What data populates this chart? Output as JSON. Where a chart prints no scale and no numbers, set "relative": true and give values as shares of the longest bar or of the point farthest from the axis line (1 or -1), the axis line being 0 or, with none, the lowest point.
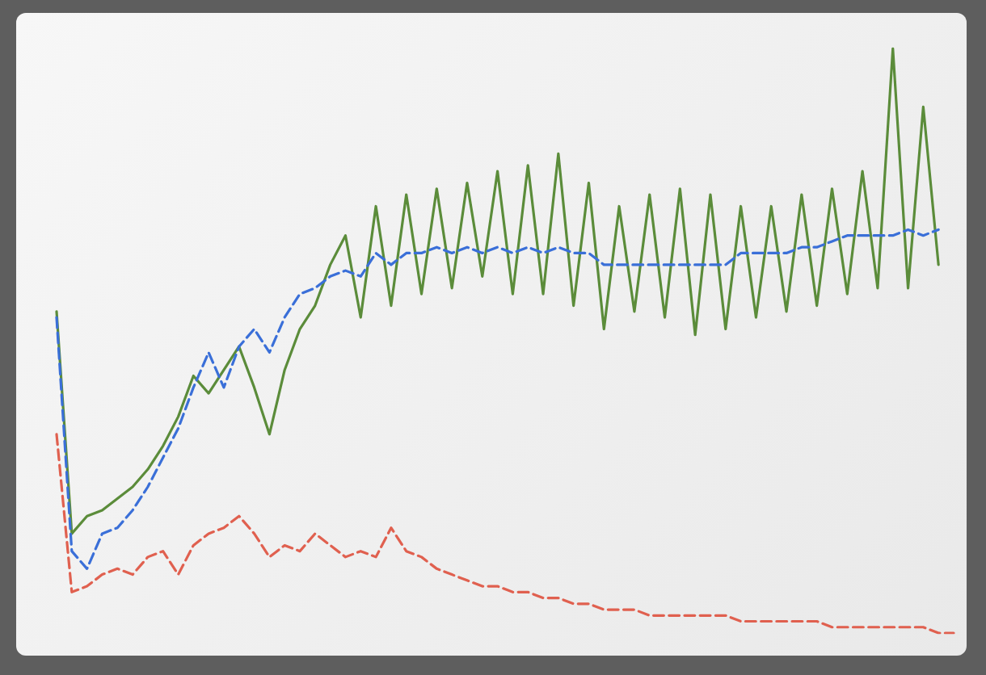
{
  "chart_data": {
    "type": "line",
    "relative": true,
    "marker": "none",
    "categories": [
      null,
      null,
      null,
      null,
      null,
      null,
      null,
      null,
      null,
      null,
      null,
      null,
      null,
      null,
      null,
      null,
      null,
      null,
      null,
      null,
      null,
      null,
      null,
      null,
      null,
      null,
      null,
      null,
      null,
      null,
      null,
      null,
      null,
      null,
      null,
      null,
      null,
      null,
      null,
      null,
      null,
      null,
      null,
      null,
      null,
      null,
      null,
      null,
      null,
      null,
      null,
      null,
      null,
      null,
      null,
      null,
      null,
      null,
      null,
      null
    ],
    "series": [
      {
        "color": "#5b8c3a",
        "line_style": "solid",
        "values": [
          0.55,
          0.17,
          0.2,
          0.21,
          0.23,
          0.25,
          0.28,
          0.32,
          0.37,
          0.44,
          0.41,
          0.45,
          0.49,
          0.42,
          0.34,
          0.45,
          0.52,
          0.56,
          0.63,
          0.68,
          0.54,
          0.73,
          0.56,
          0.75,
          0.58,
          0.76,
          0.59,
          0.77,
          0.61,
          0.79,
          0.58,
          0.8,
          0.58,
          0.82,
          0.56,
          0.77,
          0.52,
          0.73,
          0.55,
          0.75,
          0.54,
          0.76,
          0.51,
          0.75,
          0.52,
          0.73,
          0.54,
          0.73,
          0.55,
          0.75,
          0.56,
          0.76,
          0.58,
          0.79,
          0.59,
          1,
          0.59,
          0.9,
          0.63,
          null
        ]
      },
      {
        "color": "#3a6fd8",
        "line_style": "dashed",
        "values": [
          0.54,
          0.14,
          0.11,
          0.17,
          0.18,
          0.21,
          0.25,
          0.3,
          0.35,
          0.42,
          0.48,
          0.42,
          0.49,
          0.52,
          0.48,
          0.54,
          0.58,
          0.59,
          0.61,
          0.62,
          0.61,
          0.65,
          0.63,
          0.65,
          0.65,
          0.66,
          0.65,
          0.66,
          0.65,
          0.66,
          0.65,
          0.66,
          0.65,
          0.66,
          0.65,
          0.65,
          0.63,
          0.63,
          0.63,
          0.63,
          0.63,
          0.63,
          0.63,
          0.63,
          0.63,
          0.65,
          0.65,
          0.65,
          0.65,
          0.66,
          0.66,
          0.67,
          0.68,
          0.68,
          0.68,
          0.68,
          0.69,
          0.68,
          0.69,
          null
        ]
      },
      {
        "color": "#e0604f",
        "line_style": "dashed",
        "values": [
          0.34,
          0.07,
          0.08,
          0.1,
          0.11,
          0.1,
          0.13,
          0.14,
          0.1,
          0.15,
          0.17,
          0.18,
          0.2,
          0.17,
          0.13,
          0.15,
          0.14,
          0.17,
          0.15,
          0.13,
          0.14,
          0.13,
          0.18,
          0.14,
          0.13,
          0.11,
          0.1,
          0.09,
          0.08,
          0.08,
          0.07,
          0.07,
          0.06,
          0.06,
          0.05,
          0.05,
          0.04,
          0.04,
          0.04,
          0.03,
          0.03,
          0.03,
          0.03,
          0.03,
          0.03,
          0.02,
          0.02,
          0.02,
          0.02,
          0.02,
          0.02,
          0.01,
          0.01,
          0.01,
          0.01,
          0.01,
          0.01,
          0.01,
          0,
          0
        ]
      }
    ]
  }
}
